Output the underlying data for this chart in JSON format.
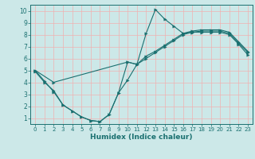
{
  "xlabel": "Humidex (Indice chaleur)",
  "background_color": "#cce8e8",
  "grid_color": "#f0b0b0",
  "line_color": "#1a7070",
  "xlim": [
    -0.5,
    23.5
  ],
  "ylim": [
    0.5,
    10.5
  ],
  "xticks": [
    0,
    1,
    2,
    3,
    4,
    5,
    6,
    7,
    8,
    9,
    10,
    11,
    12,
    13,
    14,
    15,
    16,
    17,
    18,
    19,
    20,
    21,
    22,
    23
  ],
  "yticks": [
    1,
    2,
    3,
    4,
    5,
    6,
    7,
    8,
    9,
    10
  ],
  "line1_x": [
    0,
    1,
    2,
    3,
    4,
    5,
    6,
    7,
    8,
    9,
    10,
    11,
    12,
    13,
    14,
    15,
    16,
    17,
    18,
    19,
    20,
    21,
    22,
    23
  ],
  "line1_y": [
    5.0,
    4.1,
    3.2,
    2.1,
    1.6,
    1.1,
    0.8,
    0.7,
    1.3,
    3.1,
    4.2,
    5.5,
    8.1,
    10.1,
    9.3,
    8.7,
    8.1,
    8.2,
    8.3,
    8.3,
    8.3,
    8.1,
    7.3,
    6.5
  ],
  "line2_x": [
    0,
    1,
    2,
    3,
    4,
    5,
    6,
    7,
    8,
    9,
    10,
    11,
    12,
    13,
    14,
    15,
    16,
    17,
    18,
    19,
    20,
    21,
    22,
    23
  ],
  "line2_y": [
    4.9,
    4.0,
    3.3,
    2.1,
    1.6,
    1.1,
    0.8,
    0.7,
    1.3,
    3.1,
    5.7,
    5.5,
    6.0,
    6.5,
    7.0,
    7.5,
    8.0,
    8.2,
    8.2,
    8.2,
    8.2,
    8.0,
    7.2,
    6.3
  ],
  "line3_x": [
    0,
    2,
    10,
    11,
    12,
    13,
    14,
    15,
    16,
    17,
    18,
    19,
    20,
    21,
    22,
    23
  ],
  "line3_y": [
    5.0,
    4.0,
    5.7,
    5.5,
    6.2,
    6.6,
    7.1,
    7.6,
    8.1,
    8.3,
    8.4,
    8.4,
    8.4,
    8.2,
    7.4,
    6.6
  ]
}
